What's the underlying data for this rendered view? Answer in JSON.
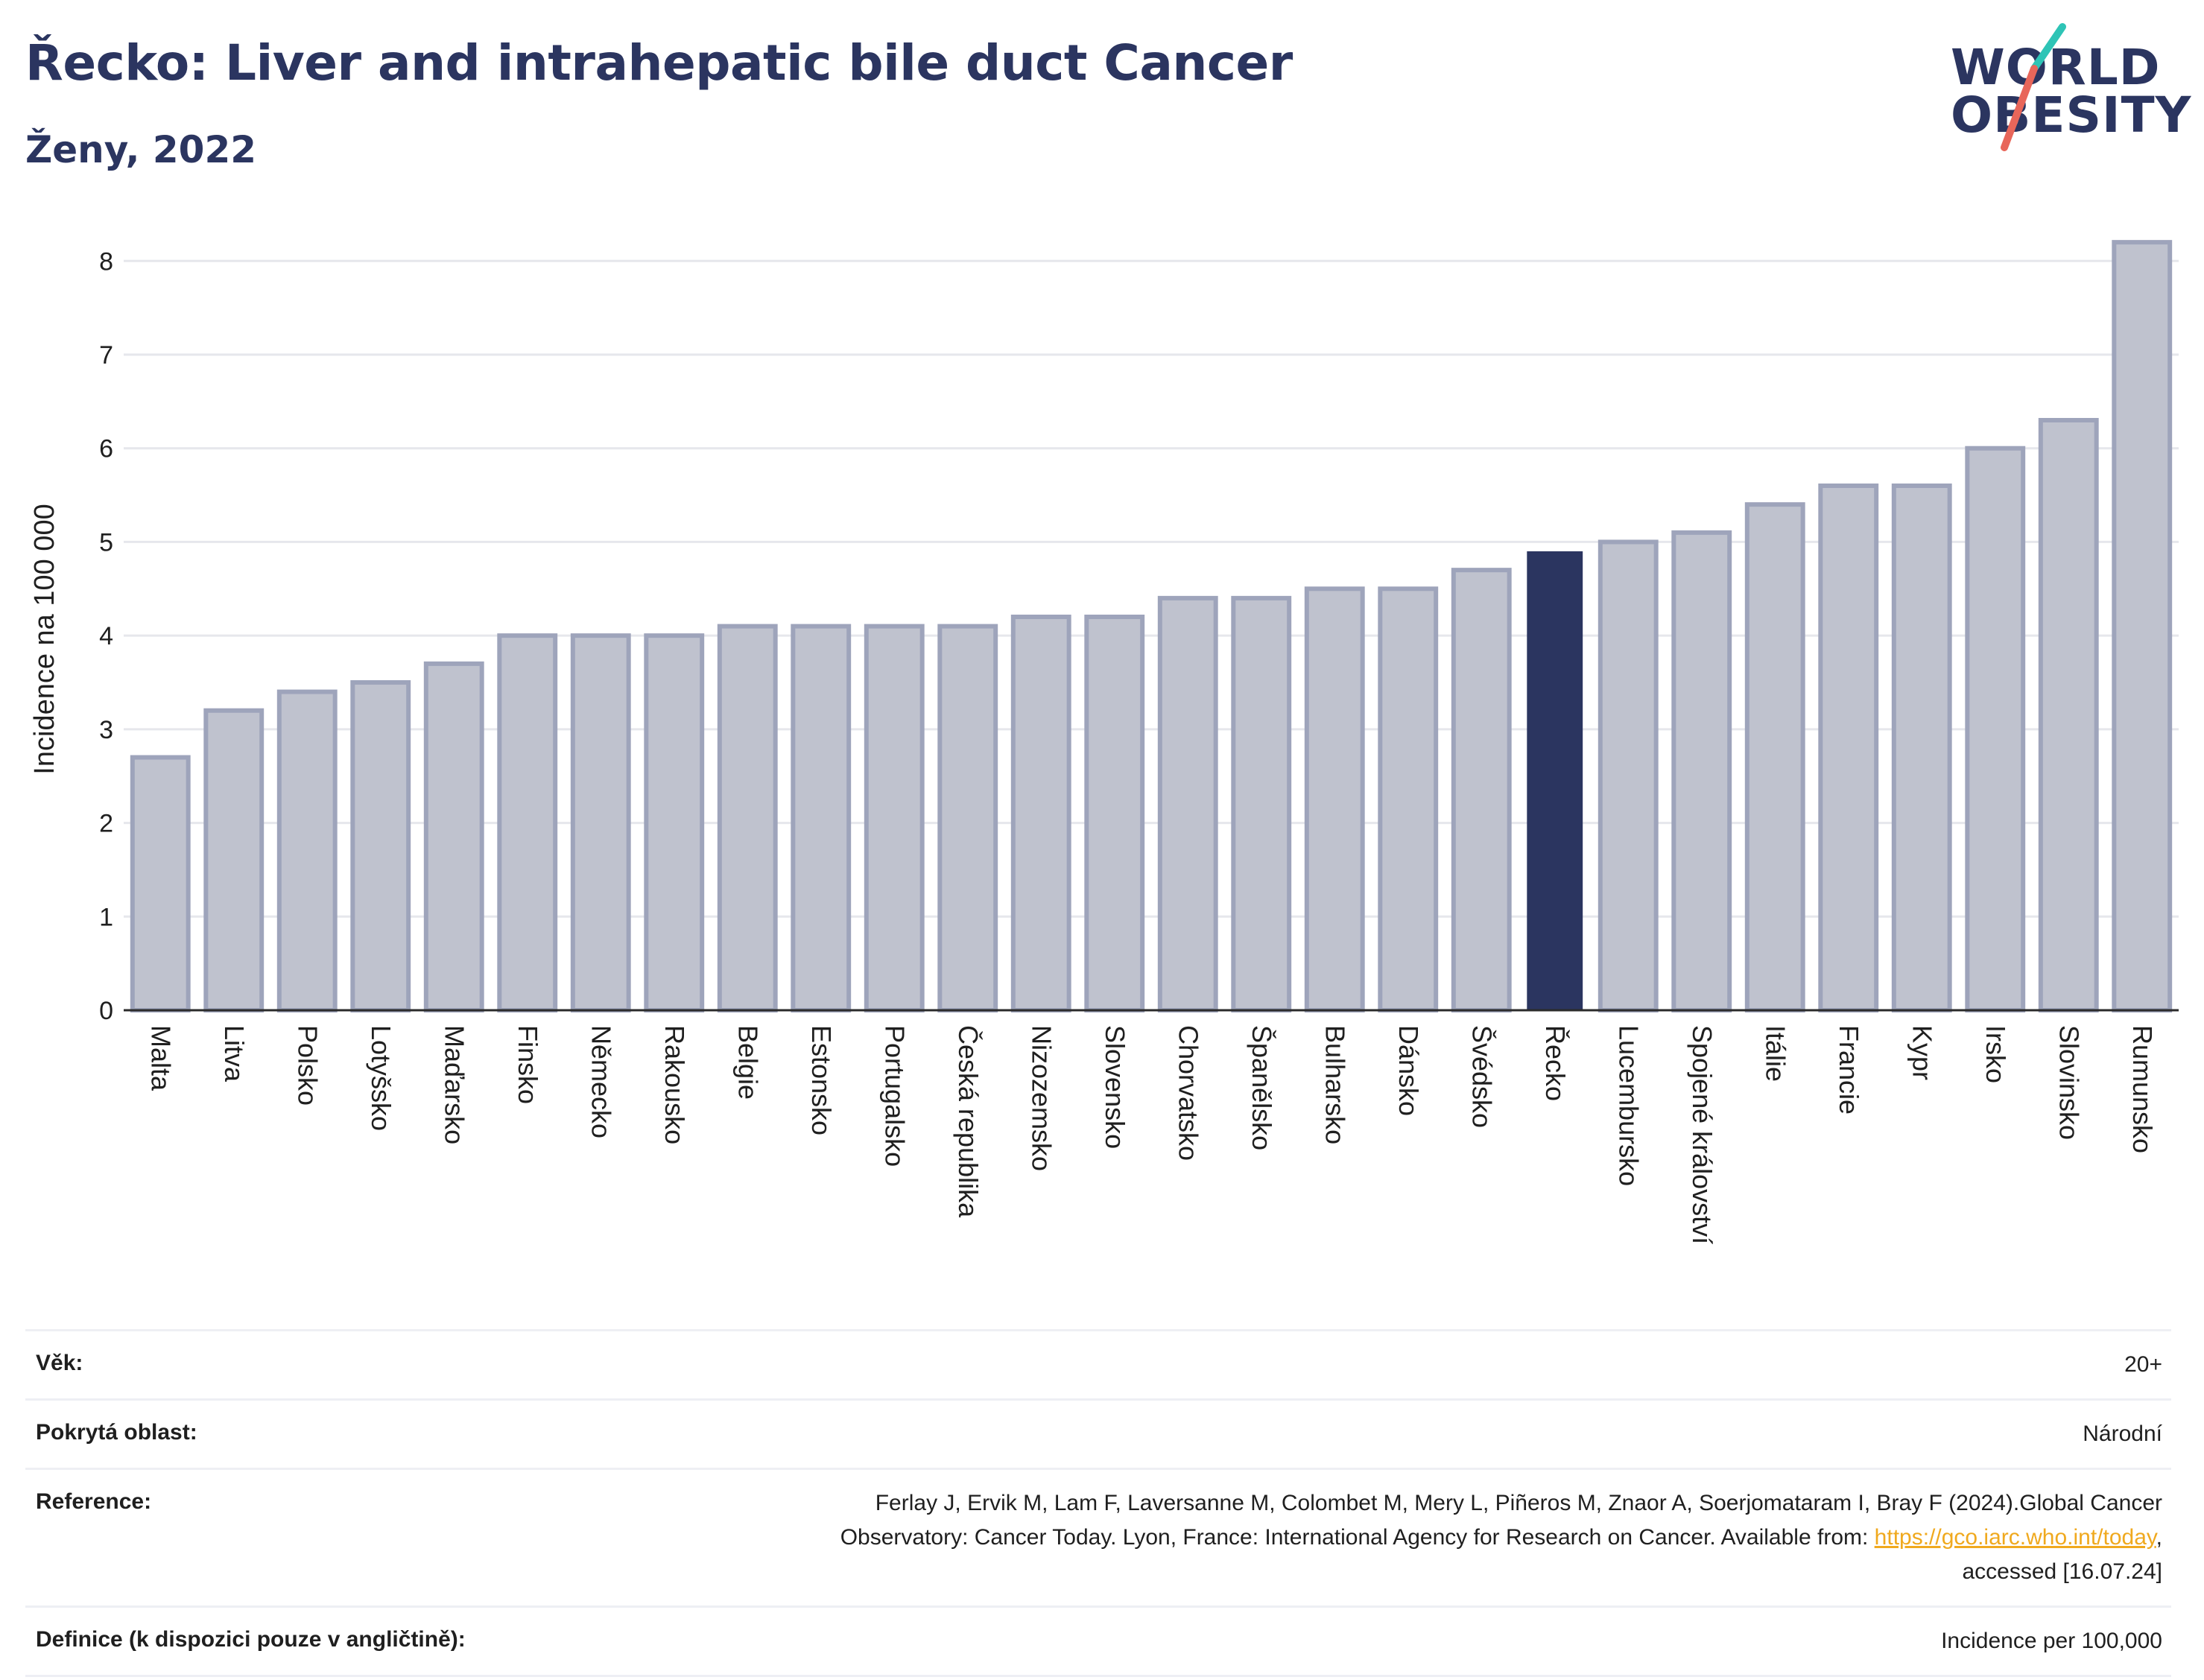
{
  "header": {
    "title": "Řecko: Liver and intrahepatic bile duct Cancer",
    "subtitle": "Ženy, 2022"
  },
  "logo": {
    "line1": "WORLD",
    "line2": "OBESITY",
    "slash_colors": [
      "#2ec4b6",
      "#e8665a"
    ]
  },
  "colors": {
    "bar_fill": "#bfc2ce",
    "bar_stroke": "#9ea4bb",
    "highlight": "#2b3560",
    "grid": "#e6e7ec",
    "axis": "#2b2b2b",
    "title": "#2b3560"
  },
  "chart_data": {
    "type": "bar",
    "ylabel": "Incidence na 100 000",
    "xlabel": "",
    "ylim": [
      0,
      8.4
    ],
    "yticks": [
      0,
      1,
      2,
      3,
      4,
      5,
      6,
      7,
      8
    ],
    "grid": true,
    "highlight_category": "Řecko",
    "categories": [
      "Malta",
      "Litva",
      "Polsko",
      "Lotyšsko",
      "Maďarsko",
      "Finsko",
      "Německo",
      "Rakousko",
      "Belgie",
      "Estonsko",
      "Portugalsko",
      "Česká republika",
      "Nizozemsko",
      "Slovensko",
      "Chorvatsko",
      "Španělsko",
      "Bulharsko",
      "Dánsko",
      "Švédsko",
      "Řecko",
      "Lucembursko",
      "Spojené království",
      "Itálie",
      "Francie",
      "Kypr",
      "Irsko",
      "Slovinsko",
      "Rumunsko"
    ],
    "values": [
      2.7,
      3.2,
      3.4,
      3.5,
      3.7,
      4.0,
      4.0,
      4.0,
      4.1,
      4.1,
      4.1,
      4.1,
      4.2,
      4.2,
      4.4,
      4.4,
      4.5,
      4.5,
      4.7,
      4.9,
      5.0,
      5.1,
      5.4,
      5.6,
      5.6,
      6.0,
      6.3,
      8.2
    ]
  },
  "info": {
    "age_label": "Věk:",
    "age_value": "20+",
    "coverage_label": "Pokrytá oblast:",
    "coverage_value": "Národní",
    "reference_label": "Reference:",
    "reference_line1": "Ferlay J, Ervik M, Lam F, Laversanne M, Colombet M, Mery L, Piñeros M, Znaor A, Soerjomataram I, Bray F (2024).Global Cancer",
    "reference_line2_pre": "Observatory: Cancer Today. Lyon, France: International Agency for Research on Cancer. Available from:",
    "reference_link": "https://gco.iarc.who.int/today",
    "reference_line2_post": ",",
    "reference_line3": "accessed [16.07.24]",
    "definition_label": "Definice (k dispozici pouze v angličtině):",
    "definition_value": "Incidence per 100,000"
  }
}
